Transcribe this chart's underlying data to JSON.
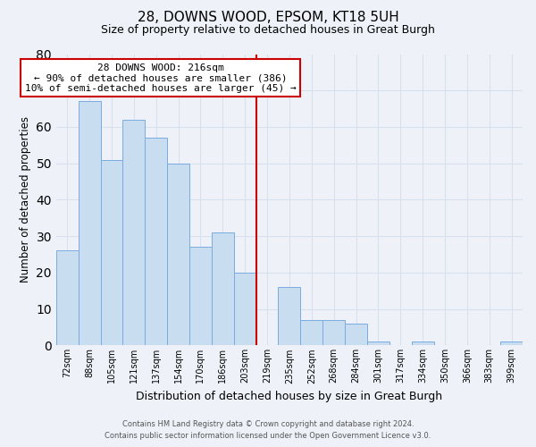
{
  "title": "28, DOWNS WOOD, EPSOM, KT18 5UH",
  "subtitle": "Size of property relative to detached houses in Great Burgh",
  "xlabel": "Distribution of detached houses by size in Great Burgh",
  "ylabel": "Number of detached properties",
  "bar_labels": [
    "72sqm",
    "88sqm",
    "105sqm",
    "121sqm",
    "137sqm",
    "154sqm",
    "170sqm",
    "186sqm",
    "203sqm",
    "219sqm",
    "235sqm",
    "252sqm",
    "268sqm",
    "284sqm",
    "301sqm",
    "317sqm",
    "334sqm",
    "350sqm",
    "366sqm",
    "383sqm",
    "399sqm"
  ],
  "bar_values": [
    26,
    67,
    51,
    62,
    57,
    50,
    27,
    31,
    20,
    0,
    16,
    7,
    7,
    6,
    1,
    0,
    1,
    0,
    0,
    0,
    1
  ],
  "bar_color": "#c8ddf0",
  "bar_edge_color": "#7aabe0",
  "vline_x": 9,
  "vline_color": "#cc0000",
  "ylim": [
    0,
    80
  ],
  "yticks": [
    0,
    10,
    20,
    30,
    40,
    50,
    60,
    70,
    80
  ],
  "annotation_title": "28 DOWNS WOOD: 216sqm",
  "annotation_line1": "← 90% of detached houses are smaller (386)",
  "annotation_line2": "10% of semi-detached houses are larger (45) →",
  "annotation_box_color": "#ffffff",
  "annotation_box_edge": "#cc0000",
  "footer1": "Contains HM Land Registry data © Crown copyright and database right 2024.",
  "footer2": "Contains public sector information licensed under the Open Government Licence v3.0.",
  "bg_color": "#eef2f8",
  "grid_color": "#d8e0ee",
  "title_fontsize": 11,
  "subtitle_fontsize": 9
}
